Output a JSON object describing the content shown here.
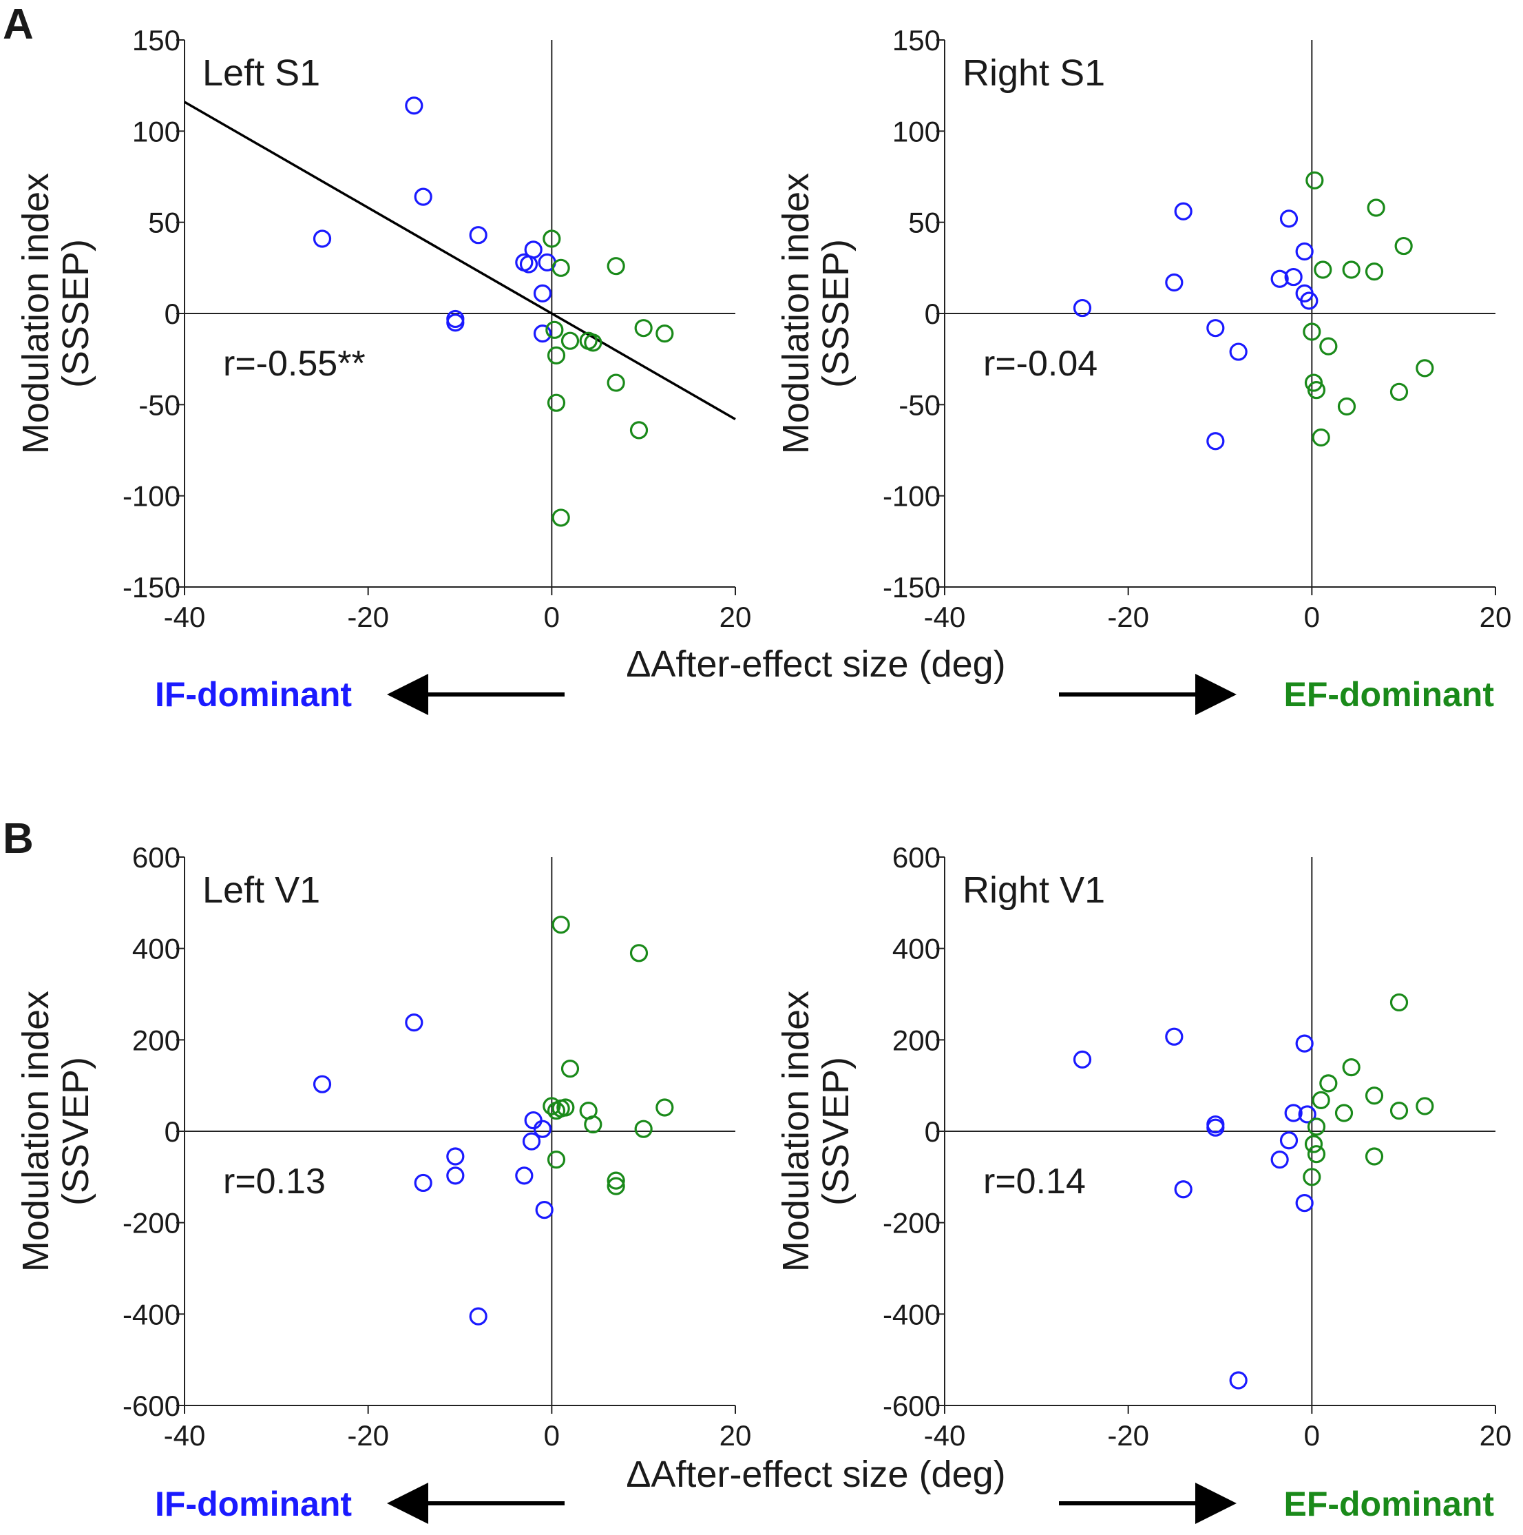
{
  "figure": {
    "panel_b_xlabel": "ΔAfter-effect size (deg)",
    "panel_a_xlabel": "ΔAfter-effect size (deg)",
    "if_label": "IF-dominant",
    "ef_label": "EF-dominant",
    "colors": {
      "if": "#1a1aff",
      "ef": "#1a8a1a",
      "axis": "#222222",
      "text": "#1a1a1a"
    }
  },
  "chart_data": [
    {
      "id": "left-s1",
      "panel": "A",
      "type": "scatter",
      "title": "Left S1",
      "ylabel_line1": "Modulation index",
      "ylabel_line2": "(SSSEP)",
      "xlim": [
        -40,
        20
      ],
      "ylim": [
        -150,
        150
      ],
      "xticks": [
        -40,
        -20,
        0,
        20
      ],
      "yticks": [
        150,
        100,
        50,
        0,
        -50,
        -100,
        -150
      ],
      "r_text": "r=-0.55**",
      "fit_line": [
        [
          -40,
          116
        ],
        [
          20,
          -58
        ]
      ],
      "series": [
        {
          "name": "IF-dominant",
          "color": "#1a1aff",
          "points": [
            [
              -15,
              114
            ],
            [
              -14,
              64
            ],
            [
              -25,
              41
            ],
            [
              -8,
              43
            ],
            [
              -2,
              35
            ],
            [
              -3,
              28
            ],
            [
              -2.5,
              27
            ],
            [
              -0.5,
              28
            ],
            [
              -1,
              11
            ],
            [
              -10.5,
              -3
            ],
            [
              -10.5,
              -5
            ],
            [
              -1,
              -11
            ]
          ]
        },
        {
          "name": "EF-dominant",
          "color": "#1a8a1a",
          "points": [
            [
              0,
              41
            ],
            [
              1,
              25
            ],
            [
              7,
              26
            ],
            [
              0.3,
              -9
            ],
            [
              2,
              -15
            ],
            [
              4,
              -15
            ],
            [
              4.5,
              -16
            ],
            [
              10,
              -8
            ],
            [
              12.3,
              -11
            ],
            [
              0.5,
              -23
            ],
            [
              7,
              -38
            ],
            [
              0.5,
              -49
            ],
            [
              9.5,
              -64
            ],
            [
              1,
              -112
            ]
          ]
        }
      ]
    },
    {
      "id": "right-s1",
      "panel": "A",
      "type": "scatter",
      "title": "Right S1",
      "ylabel_line1": "Modulation index",
      "ylabel_line2": "(SSSEP)",
      "xlim": [
        -40,
        20
      ],
      "ylim": [
        -150,
        150
      ],
      "xticks": [
        -40,
        -20,
        0,
        20
      ],
      "yticks": [
        150,
        100,
        50,
        0,
        -50,
        -100,
        -150
      ],
      "r_text": "r=-0.04",
      "series": [
        {
          "name": "IF-dominant",
          "color": "#1a1aff",
          "points": [
            [
              -14,
              56
            ],
            [
              -2.5,
              52
            ],
            [
              -0.8,
              34
            ],
            [
              -15,
              17
            ],
            [
              -3.5,
              19
            ],
            [
              -2,
              20
            ],
            [
              -0.8,
              11
            ],
            [
              -0.3,
              7
            ],
            [
              -25,
              3
            ],
            [
              -10.5,
              -8
            ],
            [
              -8,
              -21
            ],
            [
              -10.5,
              -70
            ]
          ]
        },
        {
          "name": "EF-dominant",
          "color": "#1a8a1a",
          "points": [
            [
              0.3,
              73
            ],
            [
              7,
              58
            ],
            [
              10,
              37
            ],
            [
              1.2,
              24
            ],
            [
              4.3,
              24
            ],
            [
              6.8,
              23
            ],
            [
              0,
              -10
            ],
            [
              1.8,
              -18
            ],
            [
              0.2,
              -38
            ],
            [
              0.5,
              -42
            ],
            [
              12.3,
              -30
            ],
            [
              9.5,
              -43
            ],
            [
              3.8,
              -51
            ],
            [
              1,
              -68
            ]
          ]
        }
      ]
    },
    {
      "id": "left-v1",
      "panel": "B",
      "type": "scatter",
      "title": "Left V1",
      "ylabel_line1": "Modulation index",
      "ylabel_line2": "(SSVEP)",
      "xlim": [
        -40,
        20
      ],
      "ylim": [
        -600,
        600
      ],
      "xticks": [
        -40,
        -20,
        0,
        20
      ],
      "yticks": [
        600,
        400,
        200,
        0,
        -200,
        -400,
        -600
      ],
      "r_text": "r=0.13",
      "series": [
        {
          "name": "IF-dominant",
          "color": "#1a1aff",
          "points": [
            [
              -15,
              238
            ],
            [
              -25,
              103
            ],
            [
              -2,
              24
            ],
            [
              -1,
              5
            ],
            [
              -2.2,
              -22
            ],
            [
              -10.5,
              -55
            ],
            [
              -10.5,
              -97
            ],
            [
              -3,
              -97
            ],
            [
              -14,
              -113
            ],
            [
              -0.8,
              -172
            ],
            [
              -8,
              -405
            ]
          ]
        },
        {
          "name": "EF-dominant",
          "color": "#1a8a1a",
          "points": [
            [
              1,
              452
            ],
            [
              9.5,
              390
            ],
            [
              2,
              137
            ],
            [
              0,
              55
            ],
            [
              0.5,
              45
            ],
            [
              1,
              50
            ],
            [
              1.5,
              52
            ],
            [
              4,
              45
            ],
            [
              4.5,
              15
            ],
            [
              10,
              5
            ],
            [
              12.3,
              52
            ],
            [
              0.5,
              -62
            ],
            [
              7,
              -108
            ],
            [
              7,
              -120
            ]
          ]
        }
      ]
    },
    {
      "id": "right-v1",
      "panel": "B",
      "type": "scatter",
      "title": "Right V1",
      "ylabel_line1": "Modulation index",
      "ylabel_line2": "(SSVEP)",
      "xlim": [
        -40,
        20
      ],
      "ylim": [
        -600,
        600
      ],
      "xticks": [
        -40,
        -20,
        0,
        20
      ],
      "yticks": [
        600,
        400,
        200,
        0,
        -200,
        -400,
        -600
      ],
      "r_text": "r=0.14",
      "series": [
        {
          "name": "IF-dominant",
          "color": "#1a1aff",
          "points": [
            [
              -15,
              207
            ],
            [
              -25,
              157
            ],
            [
              -0.8,
              192
            ],
            [
              -2,
              40
            ],
            [
              -0.5,
              37
            ],
            [
              -10.5,
              15
            ],
            [
              -10.5,
              8
            ],
            [
              -2.5,
              -20
            ],
            [
              -3.5,
              -62
            ],
            [
              -14,
              -127
            ],
            [
              -0.8,
              -157
            ],
            [
              -8,
              -545
            ]
          ]
        },
        {
          "name": "EF-dominant",
          "color": "#1a8a1a",
          "points": [
            [
              9.5,
              282
            ],
            [
              4.3,
              140
            ],
            [
              1.8,
              105
            ],
            [
              1,
              68
            ],
            [
              3.5,
              40
            ],
            [
              6.8,
              78
            ],
            [
              9.5,
              45
            ],
            [
              12.3,
              55
            ],
            [
              0.5,
              10
            ],
            [
              0.2,
              -28
            ],
            [
              0.5,
              -50
            ],
            [
              0,
              -100
            ],
            [
              6.8,
              -55
            ]
          ]
        }
      ]
    }
  ]
}
